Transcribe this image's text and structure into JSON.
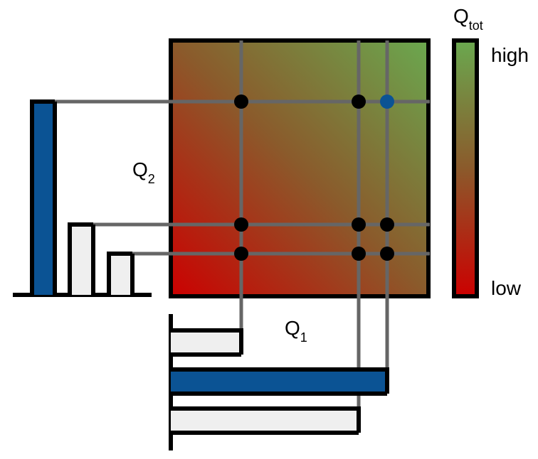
{
  "labels": {
    "q2_main": "Q",
    "q2_sub": "2",
    "q1_main": "Q",
    "q1_sub": "1",
    "qtot_main": "Q",
    "qtot_sub": "tot",
    "scale_high": "high",
    "scale_low": "low"
  },
  "colors": {
    "gradient_low": "#cc0000",
    "gradient_mid": "#8b6a2e",
    "gradient_high": "#6aa84f",
    "highlight": "#0b5394",
    "bar_fill": "#efefef",
    "grid_line": "#666666",
    "outline": "#000000"
  },
  "q2_bars": [
    {
      "id": "q2-bar-1",
      "highlighted": true
    },
    {
      "id": "q2-bar-2",
      "highlighted": false
    },
    {
      "id": "q2-bar-3",
      "highlighted": false
    }
  ],
  "q1_bars": [
    {
      "id": "q1-bar-1",
      "highlighted": false
    },
    {
      "id": "q1-bar-2",
      "highlighted": true
    },
    {
      "id": "q1-bar-3",
      "highlighted": false
    }
  ],
  "grid_points": [
    {
      "row": 1,
      "col": 1,
      "highlighted": false
    },
    {
      "row": 1,
      "col": 2,
      "highlighted": false
    },
    {
      "row": 1,
      "col": 3,
      "highlighted": true
    },
    {
      "row": 2,
      "col": 1,
      "highlighted": false
    },
    {
      "row": 2,
      "col": 2,
      "highlighted": false
    },
    {
      "row": 2,
      "col": 3,
      "highlighted": false
    },
    {
      "row": 3,
      "col": 1,
      "highlighted": false
    },
    {
      "row": 3,
      "col": 2,
      "highlighted": false
    },
    {
      "row": 3,
      "col": 3,
      "highlighted": false
    }
  ]
}
